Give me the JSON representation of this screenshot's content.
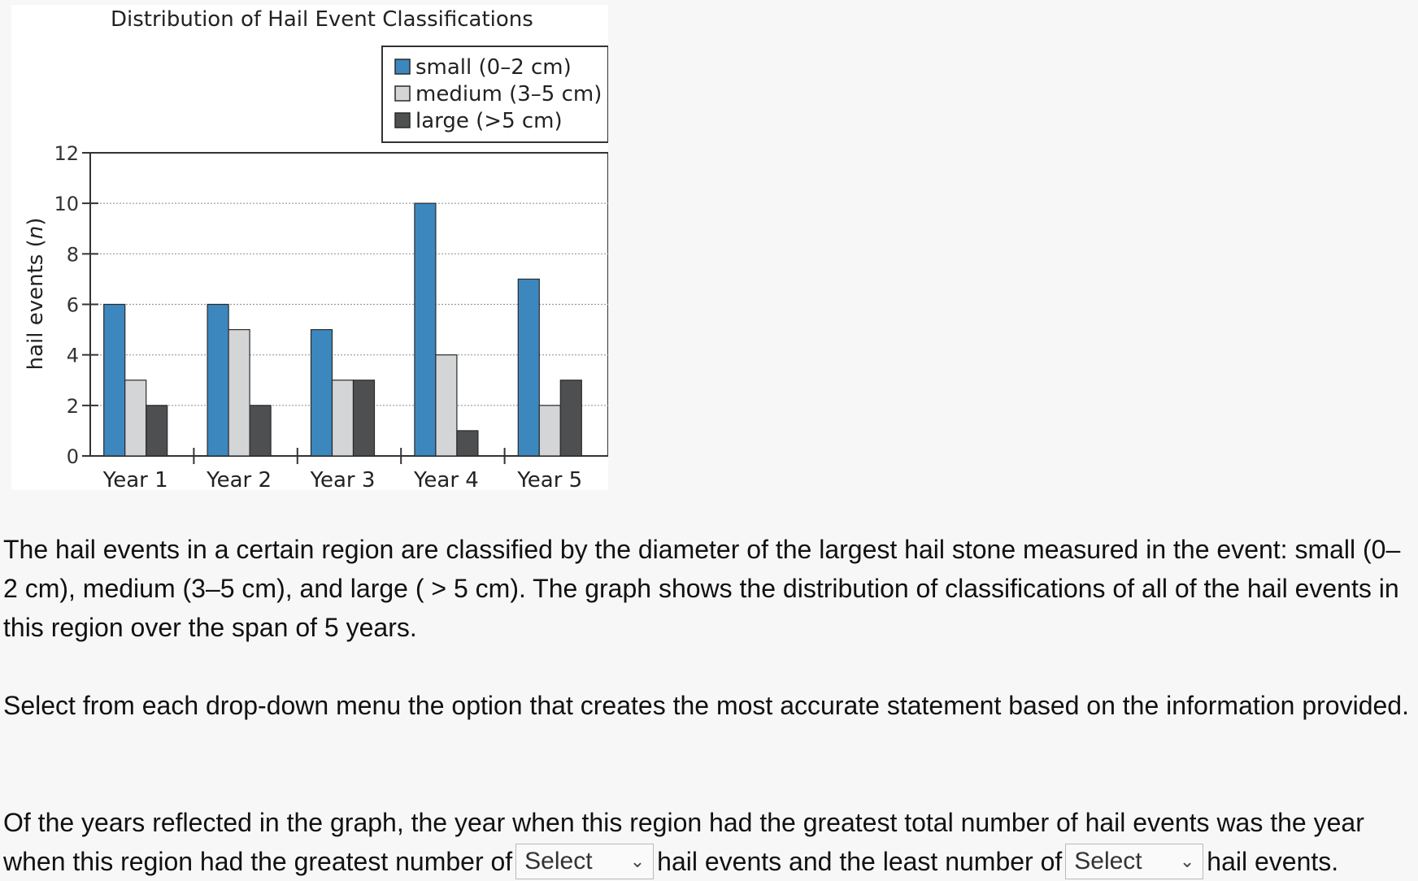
{
  "chart_data": {
    "type": "bar",
    "title": "Distribution of Hail Event Classifications",
    "ylabel_main": "hail events (",
    "ylabel_italic": "n",
    "ylabel_close": ")",
    "categories": [
      "Year 1",
      "Year 2",
      "Year 3",
      "Year 4",
      "Year 5"
    ],
    "series": [
      {
        "name": "small (0–2 cm)",
        "color": "#3d87bf",
        "values": [
          6,
          6,
          5,
          10,
          7
        ]
      },
      {
        "name": "medium (3–5 cm)",
        "color": "#d4d5d7",
        "values": [
          3,
          5,
          3,
          4,
          2
        ]
      },
      {
        "name": "large (>5 cm)",
        "color": "#4e4f51",
        "values": [
          2,
          2,
          3,
          1,
          3
        ]
      }
    ],
    "ylim": [
      0,
      12
    ],
    "yticks": [
      0,
      2,
      4,
      6,
      8,
      10,
      12
    ],
    "grid": "dotted horizontal",
    "legend_position": "top-right"
  },
  "text": {
    "para1": "The hail events in a certain region are classified by the diameter of the largest hail stone measured in the event: small (0–2 cm), medium (3–5 cm), and large ( > 5 cm). The graph shows the distribution of classifications of all of the hail events in this region over the span of 5 years.",
    "para2": "Select from each drop-down menu the option that creates the most accurate statement based on the information provided.",
    "para3_a": "Of the years reflected in the graph, the year when this region had the greatest total number of hail events was the year when this region had the greatest number of",
    "para3_b": "hail events and the least number of",
    "para3_c": "hail events."
  },
  "dropdowns": {
    "first": {
      "value": "Select",
      "chevron_icon": "chevron-down-icon"
    },
    "second": {
      "value": "Select",
      "chevron_icon": "chevron-down-icon"
    }
  }
}
